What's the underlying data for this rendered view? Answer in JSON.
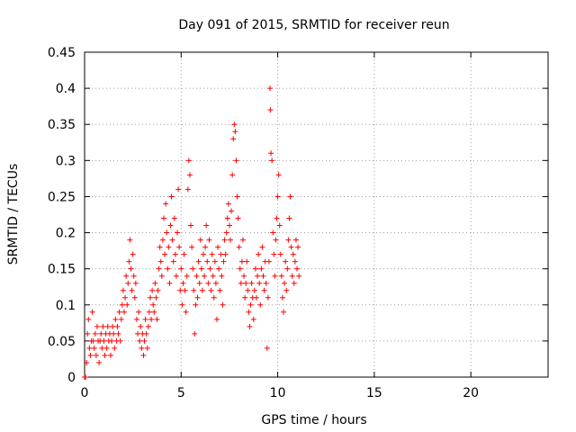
{
  "chart_data": {
    "type": "scatter",
    "title": "Day 091 of 2015, SRMTID for receiver reun",
    "xlabel": "GPS time / hours",
    "ylabel": "SRMTID / TECUs",
    "xlim": [
      0,
      24
    ],
    "ylim": [
      0,
      0.45
    ],
    "xticks": [
      0,
      5,
      10,
      15,
      20
    ],
    "xtick_labels": [
      "0",
      "5",
      "10",
      "15",
      "20"
    ],
    "yticks": [
      0,
      0.05,
      0.1,
      0.15,
      0.2,
      0.25,
      0.3,
      0.35,
      0.4,
      0.45
    ],
    "ytick_labels": [
      "0",
      "0.05",
      "0.1",
      "0.15",
      "0.2",
      "0.25",
      "0.3",
      "0.35",
      "0.4",
      "0.45"
    ],
    "grid": true,
    "marker": "plus",
    "color": "#ff0000",
    "series": [
      {
        "name": "SRMTID",
        "points": [
          [
            0.0,
            0.0
          ],
          [
            0.05,
            0.0
          ],
          [
            0.1,
            0.02
          ],
          [
            0.15,
            0.06
          ],
          [
            0.2,
            0.08
          ],
          [
            0.25,
            0.04
          ],
          [
            0.3,
            0.03
          ],
          [
            0.35,
            0.05
          ],
          [
            0.4,
            0.09
          ],
          [
            0.45,
            0.05
          ],
          [
            0.5,
            0.04
          ],
          [
            0.55,
            0.06
          ],
          [
            0.6,
            0.03
          ],
          [
            0.65,
            0.07
          ],
          [
            0.7,
            0.05
          ],
          [
            0.75,
            0.02
          ],
          [
            0.8,
            0.05
          ],
          [
            0.85,
            0.06
          ],
          [
            0.9,
            0.04
          ],
          [
            0.95,
            0.07
          ],
          [
            1.0,
            0.05
          ],
          [
            1.05,
            0.03
          ],
          [
            1.1,
            0.06
          ],
          [
            1.15,
            0.04
          ],
          [
            1.2,
            0.07
          ],
          [
            1.25,
            0.05
          ],
          [
            1.3,
            0.06
          ],
          [
            1.35,
            0.03
          ],
          [
            1.4,
            0.05
          ],
          [
            1.45,
            0.07
          ],
          [
            1.5,
            0.06
          ],
          [
            1.55,
            0.04
          ],
          [
            1.6,
            0.08
          ],
          [
            1.65,
            0.05
          ],
          [
            1.7,
            0.07
          ],
          [
            1.75,
            0.06
          ],
          [
            1.8,
            0.09
          ],
          [
            1.85,
            0.05
          ],
          [
            1.9,
            0.08
          ],
          [
            1.95,
            0.1
          ],
          [
            2.0,
            0.12
          ],
          [
            2.05,
            0.09
          ],
          [
            2.1,
            0.11
          ],
          [
            2.15,
            0.14
          ],
          [
            2.2,
            0.1
          ],
          [
            2.25,
            0.13
          ],
          [
            2.3,
            0.16
          ],
          [
            2.35,
            0.19
          ],
          [
            2.4,
            0.15
          ],
          [
            2.45,
            0.12
          ],
          [
            2.5,
            0.17
          ],
          [
            2.55,
            0.14
          ],
          [
            2.6,
            0.11
          ],
          [
            2.65,
            0.13
          ],
          [
            2.7,
            0.08
          ],
          [
            2.75,
            0.06
          ],
          [
            2.8,
            0.09
          ],
          [
            2.85,
            0.05
          ],
          [
            2.9,
            0.07
          ],
          [
            2.95,
            0.04
          ],
          [
            3.0,
            0.06
          ],
          [
            3.05,
            0.03
          ],
          [
            3.1,
            0.05
          ],
          [
            3.15,
            0.08
          ],
          [
            3.2,
            0.06
          ],
          [
            3.25,
            0.04
          ],
          [
            3.3,
            0.07
          ],
          [
            3.35,
            0.09
          ],
          [
            3.4,
            0.11
          ],
          [
            3.45,
            0.08
          ],
          [
            3.5,
            0.12
          ],
          [
            3.55,
            0.1
          ],
          [
            3.6,
            0.09
          ],
          [
            3.65,
            0.13
          ],
          [
            3.7,
            0.11
          ],
          [
            3.75,
            0.08
          ],
          [
            3.8,
            0.12
          ],
          [
            3.85,
            0.15
          ],
          [
            3.9,
            0.18
          ],
          [
            3.95,
            0.16
          ],
          [
            4.0,
            0.14
          ],
          [
            4.05,
            0.19
          ],
          [
            4.1,
            0.22
          ],
          [
            4.15,
            0.17
          ],
          [
            4.2,
            0.24
          ],
          [
            4.25,
            0.2
          ],
          [
            4.3,
            0.15
          ],
          [
            4.35,
            0.18
          ],
          [
            4.4,
            0.13
          ],
          [
            4.45,
            0.21
          ],
          [
            4.5,
            0.25
          ],
          [
            4.55,
            0.19
          ],
          [
            4.6,
            0.16
          ],
          [
            4.65,
            0.22
          ],
          [
            4.7,
            0.17
          ],
          [
            4.75,
            0.14
          ],
          [
            4.8,
            0.2
          ],
          [
            4.85,
            0.26
          ],
          [
            4.9,
            0.18
          ],
          [
            4.95,
            0.12
          ],
          [
            5.0,
            0.15
          ],
          [
            5.05,
            0.1
          ],
          [
            5.1,
            0.13
          ],
          [
            5.15,
            0.17
          ],
          [
            5.2,
            0.12
          ],
          [
            5.25,
            0.09
          ],
          [
            5.3,
            0.14
          ],
          [
            5.35,
            0.26
          ],
          [
            5.4,
            0.3
          ],
          [
            5.45,
            0.28
          ],
          [
            5.5,
            0.21
          ],
          [
            5.55,
            0.18
          ],
          [
            5.6,
            0.15
          ],
          [
            5.65,
            0.12
          ],
          [
            5.7,
            0.06
          ],
          [
            5.75,
            0.1
          ],
          [
            5.8,
            0.14
          ],
          [
            5.85,
            0.11
          ],
          [
            5.9,
            0.16
          ],
          [
            5.95,
            0.13
          ],
          [
            6.0,
            0.19
          ],
          [
            6.05,
            0.15
          ],
          [
            6.1,
            0.12
          ],
          [
            6.15,
            0.17
          ],
          [
            6.2,
            0.14
          ],
          [
            6.25,
            0.18
          ],
          [
            6.3,
            0.21
          ],
          [
            6.35,
            0.16
          ],
          [
            6.4,
            0.13
          ],
          [
            6.45,
            0.19
          ],
          [
            6.5,
            0.15
          ],
          [
            6.55,
            0.12
          ],
          [
            6.6,
            0.17
          ],
          [
            6.65,
            0.14
          ],
          [
            6.7,
            0.11
          ],
          [
            6.75,
            0.16
          ],
          [
            6.8,
            0.13
          ],
          [
            6.85,
            0.08
          ],
          [
            6.9,
            0.18
          ],
          [
            6.95,
            0.15
          ],
          [
            7.0,
            0.12
          ],
          [
            7.05,
            0.17
          ],
          [
            7.1,
            0.14
          ],
          [
            7.15,
            0.1
          ],
          [
            7.2,
            0.16
          ],
          [
            7.25,
            0.19
          ],
          [
            7.3,
            0.17
          ],
          [
            7.35,
            0.2
          ],
          [
            7.4,
            0.22
          ],
          [
            7.45,
            0.24
          ],
          [
            7.5,
            0.21
          ],
          [
            7.55,
            0.19
          ],
          [
            7.6,
            0.23
          ],
          [
            7.65,
            0.28
          ],
          [
            7.7,
            0.33
          ],
          [
            7.75,
            0.35
          ],
          [
            7.8,
            0.34
          ],
          [
            7.85,
            0.3
          ],
          [
            7.9,
            0.25
          ],
          [
            7.95,
            0.22
          ],
          [
            8.0,
            0.18
          ],
          [
            8.05,
            0.15
          ],
          [
            8.1,
            0.13
          ],
          [
            8.15,
            0.16
          ],
          [
            8.2,
            0.19
          ],
          [
            8.25,
            0.14
          ],
          [
            8.3,
            0.11
          ],
          [
            8.35,
            0.13
          ],
          [
            8.4,
            0.16
          ],
          [
            8.45,
            0.12
          ],
          [
            8.5,
            0.09
          ],
          [
            8.55,
            0.07
          ],
          [
            8.6,
            0.1
          ],
          [
            8.65,
            0.13
          ],
          [
            8.7,
            0.11
          ],
          [
            8.75,
            0.08
          ],
          [
            8.8,
            0.12
          ],
          [
            8.85,
            0.15
          ],
          [
            8.9,
            0.11
          ],
          [
            8.95,
            0.14
          ],
          [
            9.0,
            0.17
          ],
          [
            9.05,
            0.13
          ],
          [
            9.1,
            0.1
          ],
          [
            9.15,
            0.15
          ],
          [
            9.2,
            0.18
          ],
          [
            9.25,
            0.14
          ],
          [
            9.3,
            0.12
          ],
          [
            9.35,
            0.16
          ],
          [
            9.4,
            0.13
          ],
          [
            9.45,
            0.04
          ],
          [
            9.5,
            0.11
          ],
          [
            9.55,
            0.16
          ],
          [
            9.6,
            0.4
          ],
          [
            9.62,
            0.37
          ],
          [
            9.65,
            0.31
          ],
          [
            9.7,
            0.3
          ],
          [
            9.75,
            0.2
          ],
          [
            9.8,
            0.17
          ],
          [
            9.85,
            0.14
          ],
          [
            9.9,
            0.19
          ],
          [
            9.95,
            0.22
          ],
          [
            10.0,
            0.25
          ],
          [
            10.05,
            0.28
          ],
          [
            10.1,
            0.21
          ],
          [
            10.15,
            0.17
          ],
          [
            10.2,
            0.14
          ],
          [
            10.25,
            0.11
          ],
          [
            10.3,
            0.09
          ],
          [
            10.35,
            0.13
          ],
          [
            10.4,
            0.16
          ],
          [
            10.45,
            0.12
          ],
          [
            10.5,
            0.15
          ],
          [
            10.55,
            0.19
          ],
          [
            10.6,
            0.22
          ],
          [
            10.65,
            0.25
          ],
          [
            10.7,
            0.18
          ],
          [
            10.75,
            0.14
          ],
          [
            10.8,
            0.17
          ],
          [
            10.85,
            0.13
          ],
          [
            10.9,
            0.16
          ],
          [
            10.95,
            0.19
          ],
          [
            11.0,
            0.15
          ],
          [
            11.05,
            0.18
          ],
          [
            11.1,
            0.14
          ]
        ]
      }
    ]
  }
}
